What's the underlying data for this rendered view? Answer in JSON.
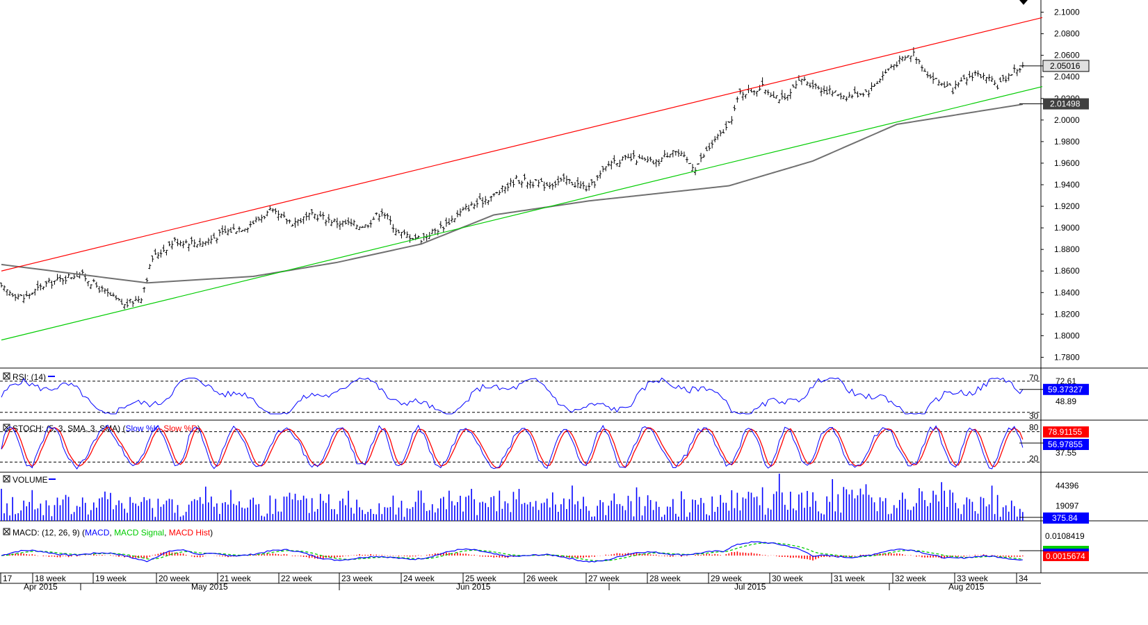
{
  "chart_data": {
    "type": "candlestick",
    "price_axis": {
      "ylim": [
        1.77,
        2.11
      ],
      "ticks": [
        "2.1000",
        "2.0800",
        "2.0600",
        "2.0400",
        "2.0200",
        "2.0000",
        "1.9800",
        "1.9600",
        "1.9400",
        "1.9200",
        "1.9000",
        "1.8800",
        "1.8600",
        "1.8400",
        "1.8200",
        "1.8000",
        "1.7800"
      ],
      "tick_values": [
        2.1,
        2.08,
        2.06,
        2.04,
        2.02,
        2.0,
        1.98,
        1.96,
        1.94,
        1.92,
        1.9,
        1.88,
        1.86,
        1.84,
        1.82,
        1.8,
        1.78
      ],
      "last_price_label": "2.05016",
      "last_price": 2.05016,
      "ma_label": "2.01498",
      "ma_value": 2.01498
    },
    "price_series": {
      "close_anchors": [
        [
          0,
          1.844
        ],
        [
          8,
          1.835
        ],
        [
          16,
          1.848
        ],
        [
          28,
          1.858
        ],
        [
          36,
          1.842
        ],
        [
          44,
          1.828
        ],
        [
          50,
          1.836
        ],
        [
          54,
          1.872
        ],
        [
          62,
          1.888
        ],
        [
          72,
          1.886
        ],
        [
          80,
          1.896
        ],
        [
          88,
          1.902
        ],
        [
          96,
          1.915
        ],
        [
          104,
          1.905
        ],
        [
          112,
          1.912
        ],
        [
          120,
          1.905
        ],
        [
          130,
          1.902
        ],
        [
          136,
          1.916
        ],
        [
          142,
          1.895
        ],
        [
          150,
          1.89
        ],
        [
          158,
          1.902
        ],
        [
          166,
          1.918
        ],
        [
          176,
          1.93
        ],
        [
          184,
          1.945
        ],
        [
          194,
          1.94
        ],
        [
          202,
          1.944
        ],
        [
          210,
          1.936
        ],
        [
          218,
          1.962
        ],
        [
          226,
          1.964
        ],
        [
          234,
          1.96
        ],
        [
          240,
          1.973
        ],
        [
          248,
          1.956
        ],
        [
          254,
          1.978
        ],
        [
          260,
          1.995
        ],
        [
          264,
          2.025
        ],
        [
          272,
          2.03
        ],
        [
          280,
          2.018
        ],
        [
          286,
          2.038
        ],
        [
          294,
          2.028
        ],
        [
          302,
          2.022
        ],
        [
          310,
          2.027
        ],
        [
          318,
          2.05
        ],
        [
          326,
          2.062
        ],
        [
          332,
          2.04
        ],
        [
          340,
          2.028
        ],
        [
          348,
          2.044
        ],
        [
          356,
          2.032
        ],
        [
          362,
          2.046
        ],
        [
          366,
          2.05
        ]
      ],
      "ma_anchors": [
        [
          0,
          1.866
        ],
        [
          52,
          1.849
        ],
        [
          90,
          1.855
        ],
        [
          120,
          1.868
        ],
        [
          150,
          1.885
        ],
        [
          176,
          1.912
        ],
        [
          210,
          1.925
        ],
        [
          260,
          1.939
        ],
        [
          290,
          1.962
        ],
        [
          320,
          1.996
        ],
        [
          366,
          2.015
        ]
      ]
    },
    "channel_lines": [
      {
        "name": "upper",
        "color": "#ff0000",
        "start": [
          0,
          1.86
        ],
        "end": [
          372,
          2.095
        ]
      },
      {
        "name": "lower",
        "color": "#00cc00",
        "start": [
          0,
          1.796
        ],
        "end": [
          372,
          2.031
        ]
      }
    ],
    "x_axis": {
      "week_labels": [
        "17",
        "18 week",
        "19 week",
        "20 week",
        "21 week",
        "22 week",
        "23 week",
        "24 week",
        "25 week",
        "26 week",
        "27 week",
        "28 week",
        "29 week",
        "30 week",
        "31 week",
        "32 week",
        "33 week",
        "34"
      ],
      "month_labels": [
        "Apr 2015",
        "May 2015",
        "Jun 2015",
        "Jul 2015",
        "Aug 2015"
      ]
    },
    "panels": {
      "rsi": {
        "title": "RSI: (14)",
        "ylim": [
          20,
          85
        ],
        "levels": [
          70,
          30
        ],
        "level_labels": [
          "70",
          "30"
        ],
        "axis_ticks": [
          "72.61",
          "48.89"
        ],
        "value_label": "59.37327",
        "last_value": 59.37327
      },
      "stoch": {
        "title": "STOCH: (5, 3, SMA, 3, SMA)",
        "legend": {
          "slow_k": "Slow %K",
          "slow_d": "Slow %D"
        },
        "ylim": [
          0,
          100
        ],
        "levels": [
          80,
          20
        ],
        "level_labels": [
          "80",
          "20"
        ],
        "axis_ticks": [
          "37.55"
        ],
        "k_label": "78.91155",
        "d_label": "56.97855"
      },
      "volume": {
        "title": "VOLUME",
        "ylim": [
          0,
          60000
        ],
        "axis_ticks": [
          "44396",
          "19097"
        ],
        "tick_values": [
          44396,
          19097
        ],
        "value_label": "375.84"
      },
      "macd": {
        "title": "MACD: (12, 26, 9)",
        "legend": {
          "macd": "MACD",
          "signal": "MACD Signal",
          "hist": "MACD Hist"
        },
        "axis_ticks": [
          "0.0108419"
        ],
        "value_label": "0.0015674"
      }
    },
    "colors": {
      "candle": "#000000",
      "ma": "#707070",
      "upper_channel": "#ff0000",
      "lower_channel": "#00cc00",
      "rsi": "#0000ff",
      "stoch_k": "#0000ff",
      "stoch_d": "#ff0000",
      "volume": "#0000ff",
      "macd": "#0000ff",
      "macd_signal": "#00cc00",
      "macd_hist": "#ff0000",
      "label_blue": "#0000ff",
      "label_red": "#ff0000",
      "label_gray": "#e0e0e0",
      "label_dark": "#404040"
    }
  }
}
